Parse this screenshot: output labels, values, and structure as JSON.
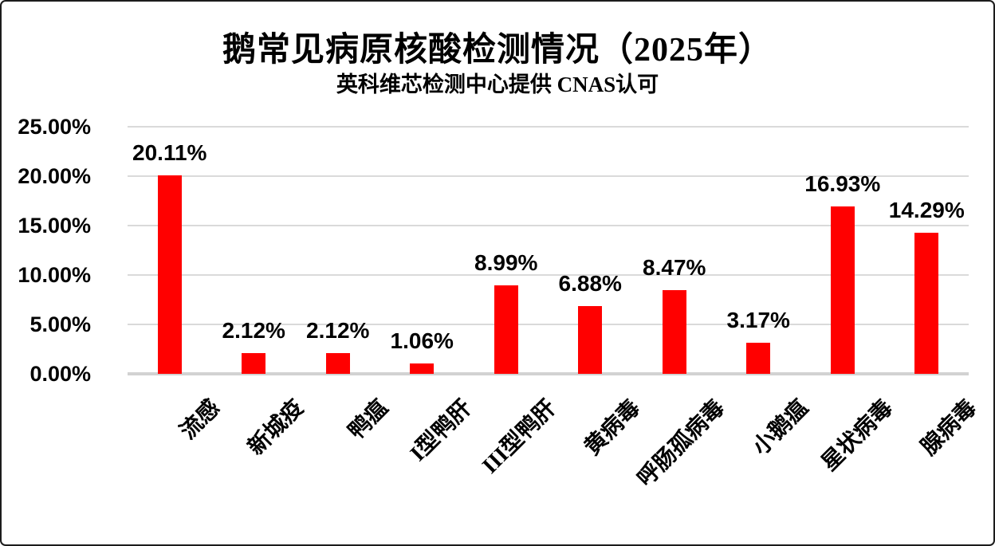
{
  "chart_data": {
    "type": "bar",
    "title": "鹅常见病原核酸检测情况（2025年）",
    "subtitle": "英科维芯检测中心提供 CNAS认可",
    "categories": [
      "流感",
      "新城疫",
      "鸭瘟",
      "I型鸭肝",
      "III型鸭肝",
      "黄病毒",
      "呼肠孤病毒",
      "小鹅瘟",
      "星状病毒",
      "腺病毒"
    ],
    "values": [
      20.11,
      2.12,
      2.12,
      1.06,
      8.99,
      6.88,
      8.47,
      3.17,
      16.93,
      14.29
    ],
    "value_labels": [
      "20.11%",
      "2.12%",
      "2.12%",
      "1.06%",
      "8.99%",
      "6.88%",
      "8.47%",
      "3.17%",
      "16.93%",
      "14.29%"
    ],
    "ytick_labels": [
      "25.00%",
      "20.00%",
      "15.00%",
      "10.00%",
      "5.00%",
      "0.00%"
    ],
    "ylim": [
      0,
      25
    ],
    "grid": true,
    "legend": false,
    "bar_color": "#ff0000",
    "gridline_color": "#dadada",
    "axis_line_color": "#d2d2d2",
    "text_color": "#000000",
    "background_color": "#ffffff",
    "border_color": "#1c1c1c"
  }
}
